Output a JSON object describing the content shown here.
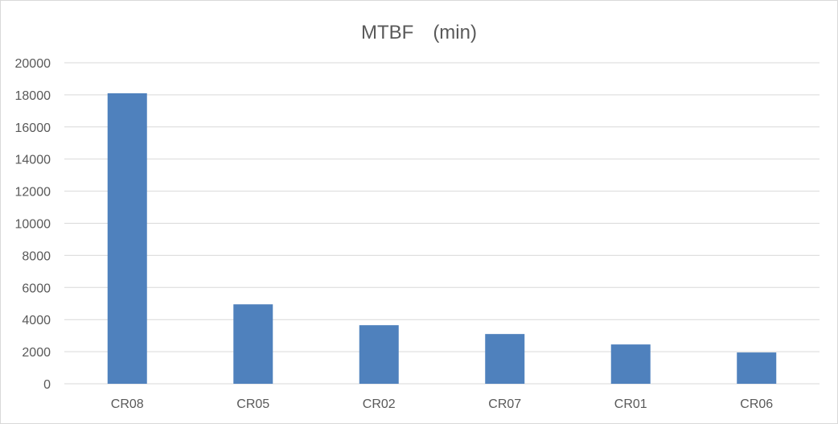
{
  "chart_data": {
    "type": "bar",
    "title": "MTBF　(min)",
    "xlabel": "",
    "ylabel": "",
    "categories": [
      "CR08",
      "CR05",
      "CR02",
      "CR07",
      "CR01",
      "CR06"
    ],
    "values": [
      18100,
      4950,
      3650,
      3100,
      2450,
      1950
    ],
    "ylim": [
      0,
      20000
    ],
    "yticks": [
      0,
      2000,
      4000,
      6000,
      8000,
      10000,
      12000,
      14000,
      16000,
      18000,
      20000
    ],
    "ytick_labels": [
      "0",
      "2000",
      "4000",
      "6000",
      "8000",
      "10000",
      "12000",
      "14000",
      "16000",
      "18000",
      "20000"
    ],
    "grid": true,
    "legend": "none",
    "bar_color": "#4f81bd",
    "grid_color": "#d9d9d9"
  }
}
